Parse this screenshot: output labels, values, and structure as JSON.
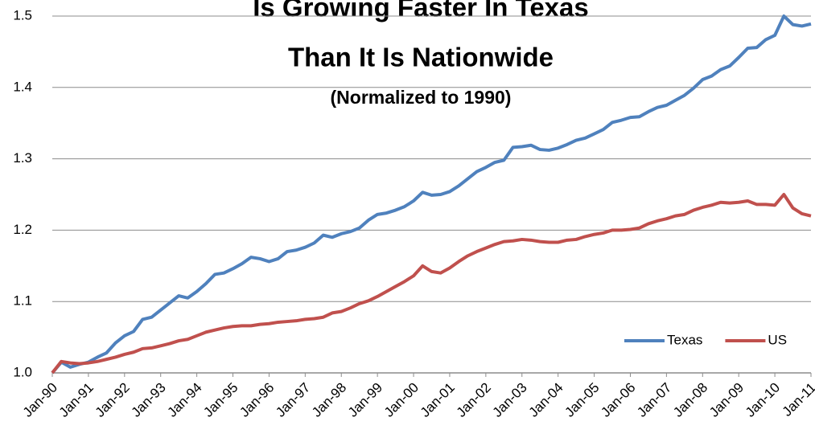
{
  "chart_data": {
    "type": "line",
    "title": [
      "Is Growing Faster In Texas",
      "Than It Is Nationwide"
    ],
    "subtitle": "(Normalized to 1990)",
    "categories": [
      "Jan-90",
      null,
      null,
      null,
      "Jan-91",
      null,
      null,
      null,
      "Jan-92",
      null,
      null,
      null,
      "Jan-93",
      null,
      null,
      null,
      "Jan-94",
      null,
      null,
      null,
      "Jan-95",
      null,
      null,
      null,
      "Jan-96",
      null,
      null,
      null,
      "Jan-97",
      null,
      null,
      null,
      "Jan-98",
      null,
      null,
      null,
      "Jan-99",
      null,
      null,
      null,
      "Jan-00",
      null,
      null,
      null,
      "Jan-01",
      null,
      null,
      null,
      "Jan-02",
      null,
      null,
      null,
      "Jan-03",
      null,
      null,
      null,
      "Jan-04",
      null,
      null,
      null,
      "Jan-05",
      null,
      null,
      null,
      "Jan-06",
      null,
      null,
      null,
      "Jan-07",
      null,
      null,
      null,
      "Jan-08",
      null,
      null,
      null,
      "Jan-09",
      null,
      null,
      null,
      "Jan-10",
      null,
      null,
      null,
      "Jan-11"
    ],
    "series": [
      {
        "name": "Texas",
        "color": "#4f81bd",
        "values": [
          1.0,
          1.015,
          1.008,
          1.012,
          1.015,
          1.022,
          1.028,
          1.042,
          1.052,
          1.058,
          1.075,
          1.078,
          1.088,
          1.098,
          1.108,
          1.105,
          1.114,
          1.125,
          1.138,
          1.14,
          1.146,
          1.153,
          1.162,
          1.16,
          1.156,
          1.16,
          1.17,
          1.172,
          1.176,
          1.182,
          1.193,
          1.19,
          1.195,
          1.198,
          1.203,
          1.214,
          1.222,
          1.224,
          1.228,
          1.233,
          1.241,
          1.253,
          1.249,
          1.25,
          1.254,
          1.262,
          1.272,
          1.282,
          1.288,
          1.295,
          1.298,
          1.316,
          1.317,
          1.319,
          1.313,
          1.312,
          1.315,
          1.32,
          1.326,
          1.329,
          1.335,
          1.341,
          1.351,
          1.354,
          1.358,
          1.359,
          1.366,
          1.372,
          1.375,
          1.382,
          1.389,
          1.399,
          1.411,
          1.416,
          1.425,
          1.43,
          1.442,
          1.455,
          1.456,
          1.467,
          1.473,
          1.5,
          1.488,
          1.486,
          1.489
        ]
      },
      {
        "name": "US",
        "color": "#c0504d",
        "values": [
          1.0,
          1.016,
          1.014,
          1.013,
          1.014,
          1.016,
          1.019,
          1.022,
          1.026,
          1.029,
          1.034,
          1.035,
          1.038,
          1.041,
          1.045,
          1.047,
          1.052,
          1.057,
          1.06,
          1.063,
          1.065,
          1.066,
          1.066,
          1.068,
          1.069,
          1.071,
          1.072,
          1.073,
          1.075,
          1.076,
          1.078,
          1.084,
          1.086,
          1.091,
          1.097,
          1.101,
          1.107,
          1.114,
          1.121,
          1.128,
          1.136,
          1.15,
          1.142,
          1.14,
          1.147,
          1.156,
          1.164,
          1.17,
          1.175,
          1.18,
          1.184,
          1.185,
          1.187,
          1.186,
          1.184,
          1.183,
          1.183,
          1.186,
          1.187,
          1.191,
          1.194,
          1.196,
          1.2,
          1.2,
          1.201,
          1.203,
          1.209,
          1.213,
          1.216,
          1.22,
          1.222,
          1.228,
          1.232,
          1.235,
          1.239,
          1.238,
          1.239,
          1.241,
          1.236,
          1.236,
          1.235,
          1.25,
          1.231,
          1.223,
          1.22
        ]
      }
    ],
    "ylim": [
      1.0,
      1.5
    ],
    "yticks": [
      {
        "value": 1.0,
        "label": "1.0"
      },
      1.1,
      1.2,
      1.3,
      1.4,
      {
        "value": 1.5,
        "label": "1.5"
      }
    ],
    "grid": true,
    "legend": "lower right"
  }
}
